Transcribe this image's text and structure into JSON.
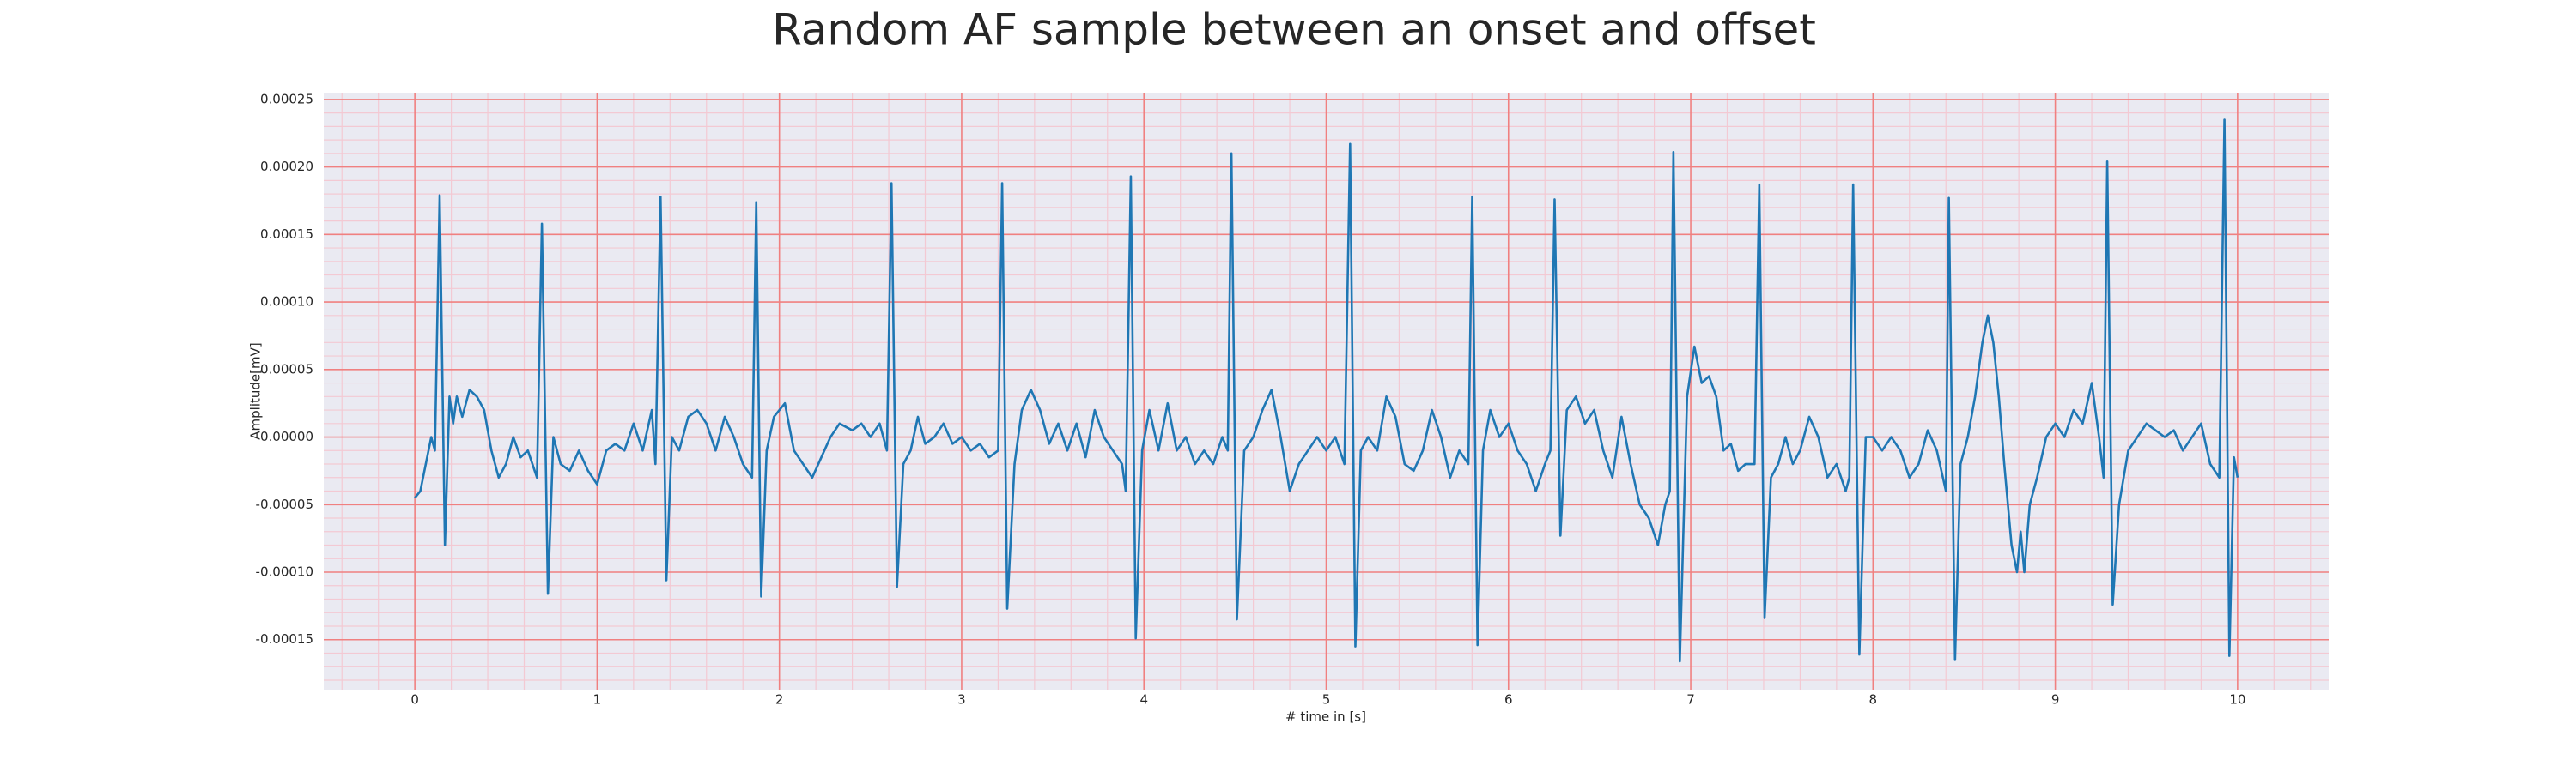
{
  "chart_data": {
    "type": "line",
    "title": "Random AF sample between an onset and offset",
    "xlabel": "# time in [s]",
    "ylabel": "Amplitude[mV]",
    "background": "#eaeaf2",
    "grid": true,
    "grid_color": "#f08080",
    "minor_grid_color": "#f3c9d3",
    "xlim": [
      -0.5,
      10.5
    ],
    "ylim": [
      -0.000187,
      0.000255
    ],
    "xticks": [
      0,
      1,
      2,
      3,
      4,
      5,
      6,
      7,
      8,
      9,
      10
    ],
    "yticks": [
      {
        "value": -0.00015,
        "label": "-0.00015"
      },
      {
        "value": -0.0001,
        "label": "-0.00010"
      },
      {
        "value": -5e-05,
        "label": "-0.00005"
      },
      {
        "value": 0,
        "label": "0.00000"
      },
      {
        "value": 5e-05,
        "label": "0.00005"
      },
      {
        "value": 0.0001,
        "label": "0.00010"
      },
      {
        "value": 0.00015,
        "label": "0.00015"
      },
      {
        "value": 0.0002,
        "label": "0.00020"
      },
      {
        "value": 0.00025,
        "label": "0.00025"
      }
    ],
    "xminorticks": [
      -0.4,
      -0.2,
      0.2,
      0.4,
      0.6,
      0.8,
      1.2,
      1.4,
      1.6,
      1.8,
      2.2,
      2.4,
      2.6,
      2.8,
      3.2,
      3.4,
      3.6,
      3.8,
      4.2,
      4.4,
      4.6,
      4.8,
      5.2,
      5.4,
      5.6,
      5.8,
      6.2,
      6.4,
      6.6,
      6.8,
      7.2,
      7.4,
      7.6,
      7.8,
      8.2,
      8.4,
      8.6,
      8.8,
      9.2,
      9.4,
      9.6,
      9.8,
      10.2,
      10.4
    ],
    "yminorticks": [
      -0.00018,
      -0.00017,
      -0.00016,
      -0.00014,
      -0.00013,
      -0.00012,
      -0.00011,
      -9e-05,
      -8e-05,
      -7e-05,
      -6e-05,
      -4e-05,
      -3e-05,
      -2e-05,
      -1e-05,
      1e-05,
      2e-05,
      3e-05,
      4e-05,
      6e-05,
      7e-05,
      8e-05,
      9e-05,
      0.00011,
      0.00012,
      0.00013,
      0.00014,
      0.00016,
      0.00017,
      0.00018,
      0.00019,
      0.00021,
      0.00022,
      0.00023,
      0.00024
    ],
    "x": [
      0,
      0.03,
      0.06,
      0.09,
      0.11,
      0.136,
      0.165,
      0.19,
      0.21,
      0.23,
      0.26,
      0.3,
      0.34,
      0.38,
      0.42,
      0.46,
      0.5,
      0.54,
      0.58,
      0.62,
      0.67,
      0.697,
      0.73,
      0.76,
      0.8,
      0.85,
      0.9,
      0.95,
      1.0,
      1.05,
      1.1,
      1.15,
      1.2,
      1.25,
      1.3,
      1.32,
      1.348,
      1.38,
      1.41,
      1.45,
      1.5,
      1.55,
      1.6,
      1.65,
      1.7,
      1.75,
      1.8,
      1.85,
      1.873,
      1.9,
      1.93,
      1.97,
      2.03,
      2.08,
      2.13,
      2.18,
      2.23,
      2.28,
      2.33,
      2.4,
      2.45,
      2.5,
      2.55,
      2.59,
      2.615,
      2.645,
      2.68,
      2.72,
      2.76,
      2.8,
      2.85,
      2.9,
      2.95,
      3.0,
      3.05,
      3.1,
      3.15,
      3.2,
      3.222,
      3.25,
      3.29,
      3.33,
      3.38,
      3.43,
      3.48,
      3.53,
      3.58,
      3.63,
      3.68,
      3.73,
      3.78,
      3.83,
      3.88,
      3.9,
      3.928,
      3.955,
      3.99,
      4.03,
      4.08,
      4.13,
      4.18,
      4.23,
      4.28,
      4.33,
      4.38,
      4.43,
      4.46,
      4.48,
      4.51,
      4.55,
      4.6,
      4.65,
      4.7,
      4.75,
      4.8,
      4.85,
      4.9,
      4.95,
      5.0,
      5.05,
      5.1,
      5.131,
      5.16,
      5.19,
      5.23,
      5.28,
      5.33,
      5.38,
      5.43,
      5.48,
      5.53,
      5.58,
      5.63,
      5.68,
      5.73,
      5.78,
      5.801,
      5.83,
      5.86,
      5.9,
      5.95,
      6.0,
      6.05,
      6.1,
      6.15,
      6.2,
      6.23,
      6.253,
      6.285,
      6.32,
      6.37,
      6.42,
      6.47,
      6.52,
      6.57,
      6.62,
      6.67,
      6.72,
      6.77,
      6.82,
      6.86,
      6.885,
      6.905,
      6.94,
      6.98,
      7.02,
      7.06,
      7.1,
      7.14,
      7.18,
      7.22,
      7.26,
      7.3,
      7.35,
      7.376,
      7.405,
      7.44,
      7.48,
      7.52,
      7.56,
      7.6,
      7.65,
      7.7,
      7.75,
      7.8,
      7.85,
      7.87,
      7.891,
      7.925,
      7.96,
      8.0,
      8.05,
      8.1,
      8.15,
      8.2,
      8.25,
      8.3,
      8.35,
      8.4,
      8.416,
      8.45,
      8.48,
      8.52,
      8.56,
      8.6,
      8.63,
      8.66,
      8.69,
      8.72,
      8.76,
      8.79,
      8.81,
      8.83,
      8.86,
      8.9,
      8.95,
      9.0,
      9.05,
      9.1,
      9.15,
      9.2,
      9.24,
      9.265,
      9.285,
      9.315,
      9.35,
      9.4,
      9.45,
      9.5,
      9.55,
      9.6,
      9.65,
      9.7,
      9.75,
      9.8,
      9.85,
      9.9,
      9.928,
      9.955,
      9.98,
      10.0
    ],
    "series": [
      {
        "color": "#1f77b4",
        "values": [
          -4.5e-05,
          -4e-05,
          -2e-05,
          0,
          -1e-05,
          0.000179,
          -8e-05,
          3e-05,
          1e-05,
          3e-05,
          1.5e-05,
          3.5e-05,
          3e-05,
          2e-05,
          -1e-05,
          -3e-05,
          -2e-05,
          0,
          -1.5e-05,
          -1e-05,
          -3e-05,
          0.000158,
          -0.000116,
          0,
          -2e-05,
          -2.5e-05,
          -1e-05,
          -2.5e-05,
          -3.5e-05,
          -1e-05,
          -5e-06,
          -1e-05,
          1e-05,
          -1e-05,
          2e-05,
          -2e-05,
          0.000178,
          -0.000106,
          0,
          -1e-05,
          1.5e-05,
          2e-05,
          1e-05,
          -1e-05,
          1.5e-05,
          0,
          -2e-05,
          -3e-05,
          0.000174,
          -0.000118,
          -1e-05,
          1.5e-05,
          2.5e-05,
          -1e-05,
          -2e-05,
          -3e-05,
          -1.5e-05,
          0,
          1e-05,
          5e-06,
          1e-05,
          0,
          1e-05,
          -1e-05,
          0.000188,
          -0.000111,
          -2e-05,
          -1e-05,
          1.5e-05,
          -5e-06,
          0,
          1e-05,
          -5e-06,
          0,
          -1e-05,
          -5e-06,
          -1.5e-05,
          -1e-05,
          0.000188,
          -0.000127,
          -2e-05,
          2e-05,
          3.5e-05,
          2e-05,
          -5e-06,
          1e-05,
          -1e-05,
          1e-05,
          -1.5e-05,
          2e-05,
          0,
          -1e-05,
          -2e-05,
          -4e-05,
          0.000193,
          -0.000149,
          -1e-05,
          2e-05,
          -1e-05,
          2.5e-05,
          -1e-05,
          0,
          -2e-05,
          -1e-05,
          -2e-05,
          0,
          -1e-05,
          0.00021,
          -0.000135,
          -1e-05,
          0,
          2e-05,
          3.5e-05,
          0,
          -4e-05,
          -2e-05,
          -1e-05,
          0,
          -1e-05,
          0,
          -2e-05,
          0.000217,
          -0.000155,
          -1e-05,
          0,
          -1e-05,
          3e-05,
          1.5e-05,
          -2e-05,
          -2.5e-05,
          -1e-05,
          2e-05,
          0,
          -3e-05,
          -1e-05,
          -2e-05,
          0.000178,
          -0.000154,
          -1e-05,
          2e-05,
          0,
          1e-05,
          -1e-05,
          -2e-05,
          -4e-05,
          -2e-05,
          -1e-05,
          0.000176,
          -7.3e-05,
          2e-05,
          3e-05,
          1e-05,
          2e-05,
          -1e-05,
          -3e-05,
          1.5e-05,
          -2e-05,
          -5e-05,
          -6e-05,
          -8e-05,
          -5e-05,
          -4e-05,
          0.000211,
          -0.000166,
          3e-05,
          6.7e-05,
          4e-05,
          4.5e-05,
          3e-05,
          -1e-05,
          -5e-06,
          -2.5e-05,
          -2e-05,
          -2e-05,
          0.000187,
          -0.000134,
          -3e-05,
          -2e-05,
          0,
          -2e-05,
          -1e-05,
          1.5e-05,
          0,
          -3e-05,
          -2e-05,
          -4e-05,
          -3e-05,
          0.000187,
          -0.000161,
          0,
          0,
          -1e-05,
          0,
          -1e-05,
          -3e-05,
          -2e-05,
          5e-06,
          -1e-05,
          -4e-05,
          0.000177,
          -0.000165,
          -2e-05,
          0,
          3e-05,
          7e-05,
          9e-05,
          7e-05,
          3e-05,
          -2e-05,
          -8e-05,
          -0.0001,
          -7e-05,
          -0.0001,
          -5e-05,
          -3e-05,
          0,
          1e-05,
          0,
          2e-05,
          1e-05,
          4e-05,
          0,
          -3e-05,
          0.000204,
          -0.000124,
          -5e-05,
          -1e-05,
          0,
          1e-05,
          5e-06,
          0,
          5e-06,
          -1e-05,
          0,
          1e-05,
          -2e-05,
          -3e-05,
          0.000235,
          -0.000162,
          -1.5e-05,
          -3e-05
        ]
      }
    ]
  }
}
